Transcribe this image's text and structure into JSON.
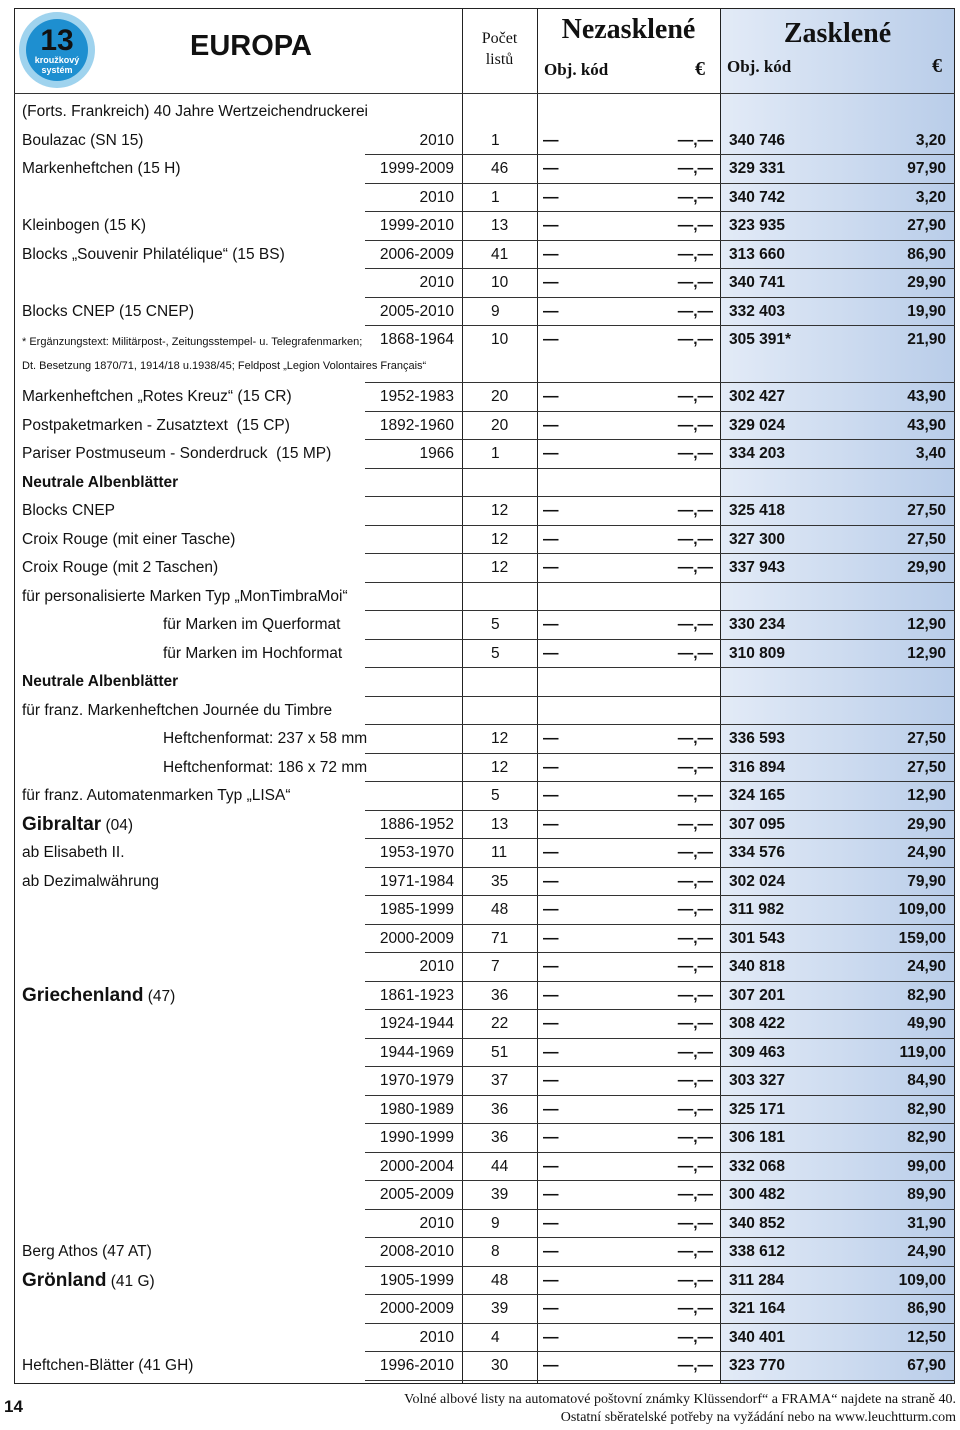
{
  "header": {
    "logo_number": "13",
    "logo_line1": "kroužkový",
    "logo_line2": "systém",
    "title": "EUROPA",
    "count_label_1": "Počet",
    "count_label_2": "listů",
    "unglazed": "Nezasklené",
    "glazed": "Zasklené",
    "code_label": "Obj. kód",
    "currency": "€"
  },
  "placeholder_code": "—",
  "placeholder_price": "—,—",
  "rows": [
    {
      "desc": "(Forts. Frankreich) 40 Jahre Wertzeichendruckerei"
    },
    {
      "desc": "Boulazac (SN 15)",
      "year": "2010",
      "count": 1,
      "code": "340 746",
      "price": "3,20"
    },
    {
      "desc": "Markenheftchen (15 H)",
      "year": "1999-2009",
      "count": 46,
      "code": "329 331",
      "price": "97,90"
    },
    {
      "year": "2010",
      "count": 1,
      "code": "340 742",
      "price": "3,20"
    },
    {
      "desc": "Kleinbogen (15 K)",
      "year": "1999-2010",
      "count": 13,
      "code": "323 935",
      "price": "27,90"
    },
    {
      "desc": "Blocks „Souvenir Philatélique“ (15 BS)",
      "year": "2006-2009",
      "count": 41,
      "code": "313 660",
      "price": "86,90"
    },
    {
      "year": "2010",
      "count": 10,
      "code": "340 741",
      "price": "29,90"
    },
    {
      "desc": "Blocks CNEP (15 CNEP)",
      "year": "2005-2010",
      "count": 9,
      "code": "332 403",
      "price": "19,90"
    },
    {
      "note": [
        "* Ergänzungstext: Militärpost-, Zeitungsstempel- u. Telegrafenmarken;",
        "Dt. Besetzung 1870/71, 1914/18 u.1938/45; Feldpost „Legion Volontaires Français“"
      ],
      "year": "1868-1964",
      "count": 10,
      "code": "305 391*",
      "price": "21,90"
    },
    {
      "desc": "Markenheftchen „Rotes Kreuz“ (15 CR)",
      "year": "1952-1983",
      "count": 20,
      "code": "302 427",
      "price": "43,90"
    },
    {
      "desc": "Postpaketmarken - Zusatztext  (15 CP)",
      "year": "1892-1960",
      "count": 20,
      "code": "329 024",
      "price": "43,90"
    },
    {
      "desc": "Pariser Postmuseum - Sonderdruck  (15 MP)",
      "year": "1966",
      "count": 1,
      "code": "334 203",
      "price": "3,40"
    },
    {
      "heading": "Neutrale Albenblätter"
    },
    {
      "desc": "Blocks CNEP",
      "count": 12,
      "code": "325 418",
      "price": "27,50"
    },
    {
      "desc": "Croix Rouge (mit einer Tasche)",
      "count": 12,
      "code": "327 300",
      "price": "27,50"
    },
    {
      "desc": "Croix Rouge (mit 2 Taschen)",
      "count": 12,
      "code": "337 943",
      "price": "29,90"
    },
    {
      "desc": "für personalisierte Marken Typ „MonTimbraMoi“"
    },
    {
      "subdesc": "für Marken im Querformat",
      "count": 5,
      "code": "330 234",
      "price": "12,90"
    },
    {
      "subdesc": "für Marken im Hochformat",
      "count": 5,
      "code": "310 809",
      "price": "12,90"
    },
    {
      "heading": "Neutrale Albenblätter"
    },
    {
      "desc": "für franz. Markenheftchen Journée du Timbre"
    },
    {
      "subdesc": "Heftchenformat: 237 x 58 mm",
      "count": 12,
      "code": "336 593",
      "price": "27,50"
    },
    {
      "subdesc": "Heftchenformat: 186 x 72 mm",
      "count": 12,
      "code": "316 894",
      "price": "27,50"
    },
    {
      "desc": "für franz. Automatenmarken Typ „LISA“",
      "count": 5,
      "code": "324 165",
      "price": "12,90"
    },
    {
      "country": "Gibraltar",
      "desc": " (04)",
      "year": "1886-1952",
      "count": 13,
      "code": "307 095",
      "price": "29,90"
    },
    {
      "desc": "ab Elisabeth II.",
      "year": "1953-1970",
      "count": 11,
      "code": "334 576",
      "price": "24,90"
    },
    {
      "desc": "ab Dezimalwährung",
      "year": "1971-1984",
      "count": 35,
      "code": "302 024",
      "price": "79,90"
    },
    {
      "year": "1985-1999",
      "count": 48,
      "code": "311 982",
      "price": "109,00"
    },
    {
      "year": "2000-2009",
      "count": 71,
      "code": "301 543",
      "price": "159,00"
    },
    {
      "year": "2010",
      "count": 7,
      "code": "340 818",
      "price": "24,90"
    },
    {
      "country": "Griechenland",
      "desc": " (47)",
      "year": "1861-1923",
      "count": 36,
      "code": "307 201",
      "price": "82,90"
    },
    {
      "year": "1924-1944",
      "count": 22,
      "code": "308 422",
      "price": "49,90"
    },
    {
      "year": "1944-1969",
      "count": 51,
      "code": "309 463",
      "price": "119,00"
    },
    {
      "year": "1970-1979",
      "count": 37,
      "code": "303 327",
      "price": "84,90"
    },
    {
      "year": "1980-1989",
      "count": 36,
      "code": "325 171",
      "price": "82,90"
    },
    {
      "year": "1990-1999",
      "count": 36,
      "code": "306 181",
      "price": "82,90"
    },
    {
      "year": "2000-2004",
      "count": 44,
      "code": "332 068",
      "price": "99,00"
    },
    {
      "year": "2005-2009",
      "count": 39,
      "code": "300 482",
      "price": "89,90"
    },
    {
      "year": "2010",
      "count": 9,
      "code": "340 852",
      "price": "31,90"
    },
    {
      "desc": "Berg Athos (47 AT)",
      "year": "2008-2010",
      "count": 8,
      "code": "338 612",
      "price": "24,90"
    },
    {
      "country": "Grönland",
      "desc": " (41 G)",
      "year": "1905-1999",
      "count": 48,
      "code": "311 284",
      "price": "109,00"
    },
    {
      "year": "2000-2009",
      "count": 39,
      "code": "321 164",
      "price": "86,90"
    },
    {
      "year": "2010",
      "count": 4,
      "code": "340 401",
      "price": "12,50"
    },
    {
      "desc": "Heftchen-Blätter (41 GH)",
      "year": "1996-2010",
      "count": 30,
      "code": "323 770",
      "price": "67,90"
    }
  ],
  "footer": {
    "page": "14",
    "line1": "Volné albové listy na automatové poštovní známky Klüssendorf“ a FRAMA“ najdete na straně 40.",
    "line2": "Ostatní sběratelské potřeby na vyžádání nebo na www.leuchtturm.com"
  }
}
